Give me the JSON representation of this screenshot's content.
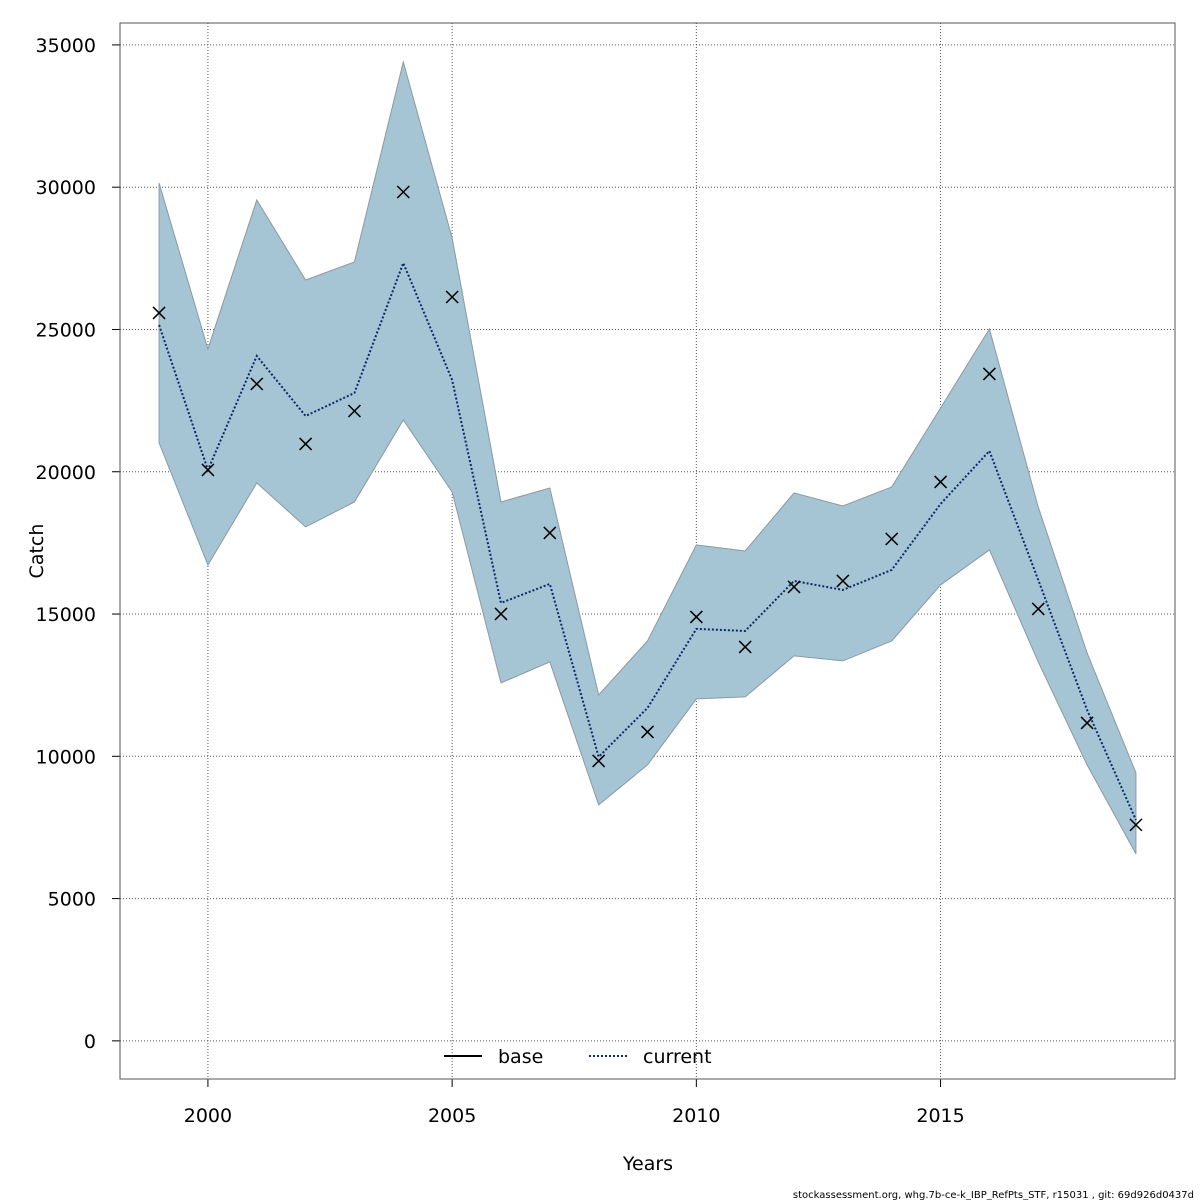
{
  "chart_data": {
    "type": "line",
    "xlabel": "Years",
    "ylabel": "Catch",
    "footer": "stockassessment.org, whg.7b-ce-k_IBP_RefPts_STF, r15031 , git: 69d926d0437d",
    "x": [
      1999,
      2000,
      2001,
      2002,
      2003,
      2004,
      2005,
      2006,
      2007,
      2008,
      2009,
      2010,
      2011,
      2012,
      2013,
      2014,
      2015,
      2016,
      2017,
      2018,
      2019
    ],
    "series": [
      {
        "name": "base",
        "color": "#000000",
        "dash": "solid",
        "values": [
          null,
          null,
          null,
          null,
          null,
          null,
          null,
          null,
          null,
          null,
          null,
          null,
          null,
          null,
          null,
          null,
          null,
          null,
          null,
          null,
          null
        ]
      },
      {
        "name": "current",
        "color": "#0a2a6b",
        "dash": "dotted",
        "values": [
          25158,
          20063,
          24069,
          21960,
          22769,
          27336,
          23226,
          15390,
          16058,
          9979,
          11700,
          14477,
          14406,
          16163,
          15847,
          16550,
          18869,
          20731,
          16198,
          11630,
          7765
        ]
      }
    ],
    "band": {
      "color": "#a5c4d4",
      "upper": [
        30147,
        24315,
        29550,
        26739,
        27371,
        34399,
        28215,
        18939,
        19431,
        12157,
        14055,
        17428,
        17217,
        19255,
        18798,
        19466,
        22242,
        25017,
        18763,
        13633,
        9417
      ],
      "lower": [
        21012,
        16725,
        19607,
        18060,
        18939,
        21820,
        19290,
        12579,
        13317,
        8292,
        9698,
        12017,
        12087,
        13528,
        13352,
        14055,
        16023,
        17252,
        13317,
        9698,
        6571
      ]
    },
    "points": {
      "color": "#000000",
      "marker": "x",
      "values": [
        25580,
        20063,
        23085,
        20977,
        22136,
        29831,
        26142,
        15003,
        17850,
        9838,
        10857,
        14898,
        13844,
        15952,
        16163,
        17639,
        19642,
        23437,
        15179,
        11173,
        7590
      ]
    },
    "xlim": [
      1998.2,
      2019.8
    ],
    "ylim": [
      -1340,
      35770
    ],
    "xticks": [
      2000,
      2005,
      2010,
      2015
    ],
    "yticks": [
      0,
      5000,
      10000,
      15000,
      20000,
      25000,
      30000,
      35000
    ],
    "grid": true,
    "legend": "bottom"
  }
}
